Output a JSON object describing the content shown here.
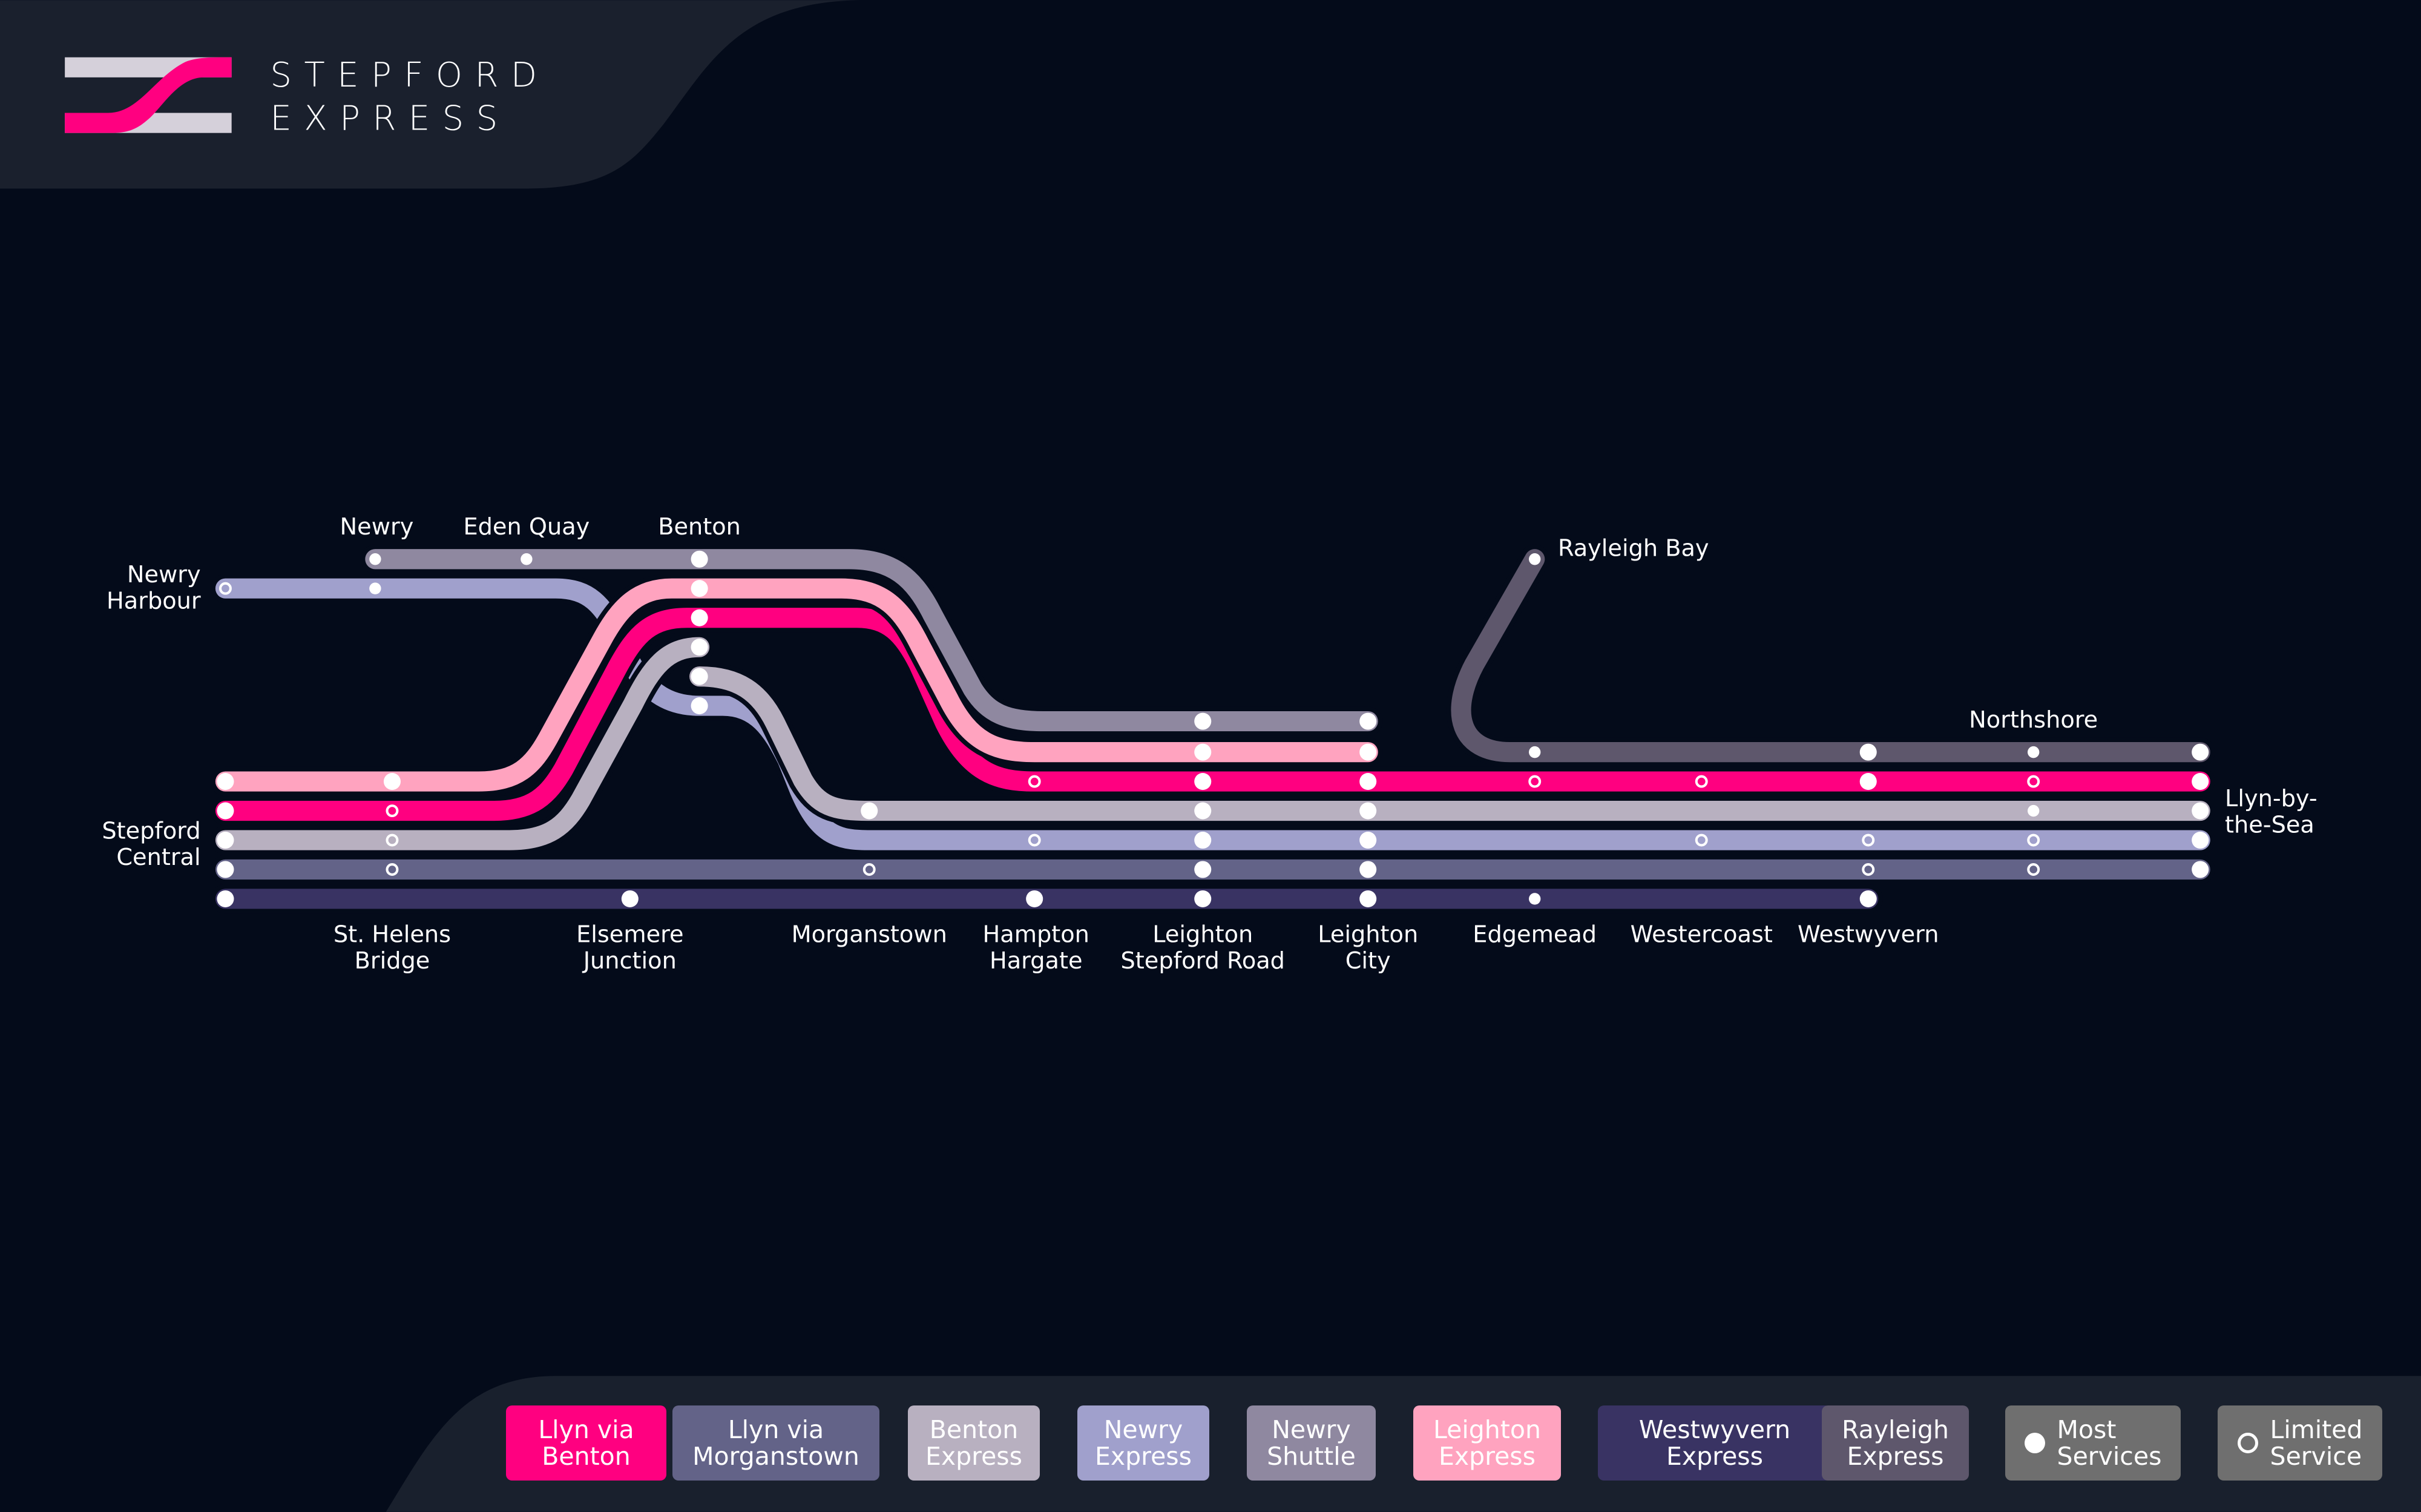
{
  "brand": {
    "line1": "STEPFORD",
    "line2": "EXPRESS",
    "accent": "#ff0080",
    "logo_light": "#d5d0da"
  },
  "lines": [
    {
      "id": "llyn-benton",
      "name": "Llyn via Benton",
      "color": "#ff0080"
    },
    {
      "id": "llyn-morganstown",
      "name": "Llyn via Morganstown",
      "color": "#636388"
    },
    {
      "id": "benton-express",
      "name": "Benton Express",
      "color": "#b8b0c0"
    },
    {
      "id": "newry-express",
      "name": "Newry Express",
      "color": "#a0a0cc"
    },
    {
      "id": "newry-shuttle",
      "name": "Newry Shuttle",
      "color": "#8f88a0"
    },
    {
      "id": "leighton-express",
      "name": "Leighton Express",
      "color": "#ffa3bf"
    },
    {
      "id": "westwyvern-express",
      "name": "Westwyvern Express",
      "color": "#393363"
    },
    {
      "id": "rayleigh-express",
      "name": "Rayleigh Express",
      "color": "#5e576c"
    }
  ],
  "legend": {
    "items": [
      {
        "l1": "Llyn via",
        "l2": "Benton"
      },
      {
        "l1": "Llyn via",
        "l2": "Morganstown"
      },
      {
        "l1": "Benton",
        "l2": "Express"
      },
      {
        "l1": "Newry",
        "l2": "Express"
      },
      {
        "l1": "Newry",
        "l2": "Shuttle"
      },
      {
        "l1": "Leighton",
        "l2": "Express"
      },
      {
        "l1": "Westwyvern",
        "l2": "Express"
      },
      {
        "l1": "Rayleigh",
        "l2": "Express"
      }
    ],
    "most_services": {
      "l1": "Most",
      "l2": "Services"
    },
    "limited_service": {
      "l1": "Limited",
      "l2": "Service"
    },
    "key_color": "#6f6f6f"
  },
  "stations": {
    "stepford_central": [
      "Stepford",
      "Central"
    ],
    "newry_harbour": [
      "Newry",
      "Harbour"
    ],
    "newry": [
      "Newry"
    ],
    "eden_quay": [
      "Eden Quay"
    ],
    "benton": [
      "Benton"
    ],
    "st_helens_bridge": [
      "St. Helens",
      "Bridge"
    ],
    "elsemere_junction": [
      "Elsemere",
      "Junction"
    ],
    "morganstown": [
      "Morganstown"
    ],
    "hampton_hargate": [
      "Hampton",
      "Hargate"
    ],
    "leighton_stepford_road": [
      "Leighton",
      "Stepford Road"
    ],
    "leighton_city": [
      "Leighton",
      "City"
    ],
    "rayleigh_bay": [
      "Rayleigh Bay"
    ],
    "edgemead": [
      "Edgemead"
    ],
    "westercoast": [
      "Westercoast"
    ],
    "westwyvern": [
      "Westwyvern"
    ],
    "northshore": [
      "Northshore"
    ],
    "llyn_by_the_sea": [
      "Llyn-by-",
      "the-Sea"
    ]
  }
}
